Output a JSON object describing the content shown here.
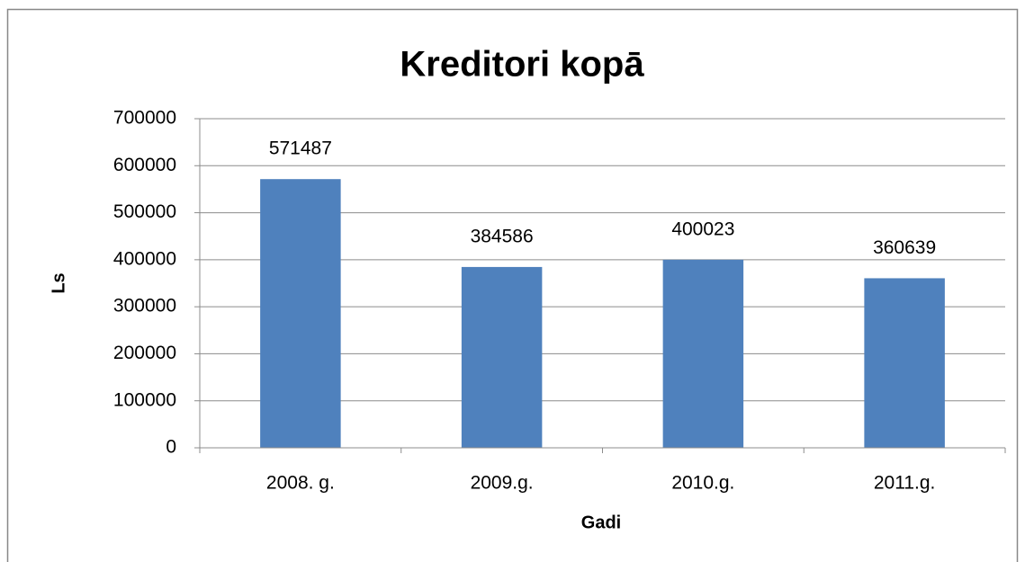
{
  "chart_data": {
    "type": "bar",
    "title": "Kreditori kopā",
    "x_label": "Gadi",
    "y_label": "Ls",
    "categories": [
      "2008. g.",
      "2009.g.",
      "2010.g.",
      "2011.g."
    ],
    "values": [
      571487,
      384586,
      400023,
      360639
    ],
    "color": "#4f81bd",
    "ylim": [
      0,
      700000
    ],
    "yticks": [
      0,
      100000,
      200000,
      300000,
      400000,
      500000,
      600000,
      700000
    ],
    "grid": true
  }
}
